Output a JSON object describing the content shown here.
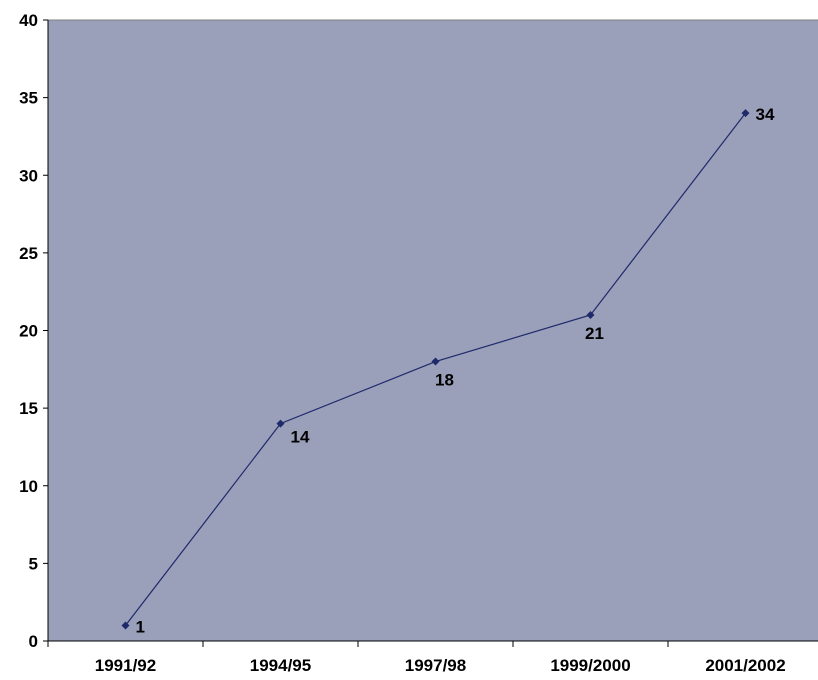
{
  "chart_data": {
    "type": "line",
    "title": "",
    "xlabel": "",
    "ylabel": "",
    "categories": [
      "1991/92",
      "1994/95",
      "1997/98",
      "1999/2000",
      "2001/2002"
    ],
    "series": [
      {
        "values": [
          1,
          14,
          18,
          21,
          34
        ]
      }
    ],
    "data_labels": [
      "1",
      "14",
      "18",
      "21",
      "34"
    ],
    "ylim": [
      0,
      40
    ],
    "yticks": [
      0,
      5,
      10,
      15,
      20,
      25,
      30,
      35,
      40
    ],
    "grid": false,
    "legend": "none",
    "colors": {
      "plot_background": "#9a9fba",
      "line": "#1f2a6b",
      "marker": "#1f2a6b",
      "axis": "#000000"
    }
  }
}
